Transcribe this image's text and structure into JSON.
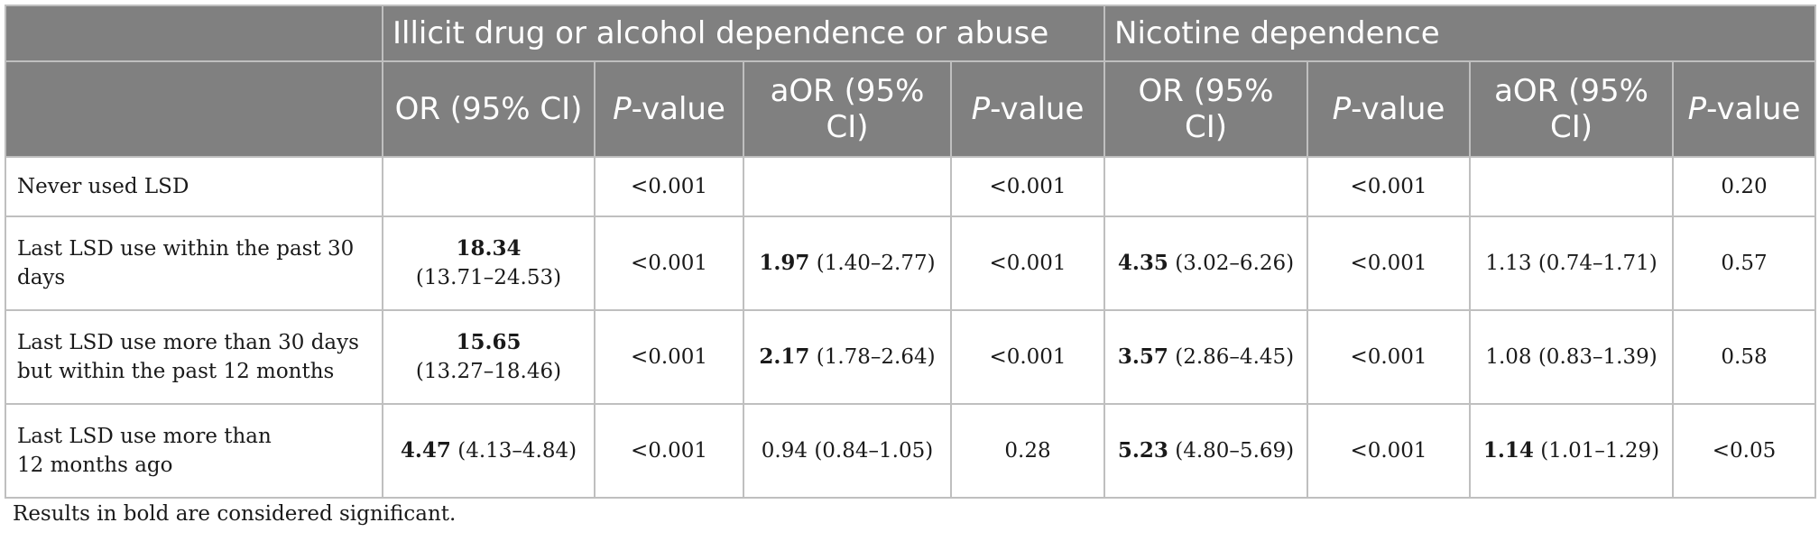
{
  "groups": {
    "illicit": "Illicit drug or alcohol dependence or abuse",
    "nicotine": "Nicotine dependence"
  },
  "columns": {
    "or": "OR (95% CI)",
    "p_italic": "P",
    "p_rest": "-value",
    "aor": "aOR (95% CI)"
  },
  "rows": [
    {
      "label": "Never used LSD",
      "c1_bold": "",
      "c1_rest": "",
      "c2": "<0.001",
      "c3_bold": "",
      "c3_rest": "",
      "c4": "<0.001",
      "c5_bold": "",
      "c5_rest": "",
      "c6": "<0.001",
      "c7_bold": "",
      "c7_rest": "",
      "c8": "0.20"
    },
    {
      "label": "Last LSD use within the past 30 days",
      "c1_bold": "18.34",
      "c1_rest": "(13.71–24.53)",
      "c2": "<0.001",
      "c3_bold": "1.97",
      "c3_rest": " (1.40–2.77)",
      "c4": "<0.001",
      "c5_bold": "4.35",
      "c5_rest": " (3.02–6.26)",
      "c6": "<0.001",
      "c7_bold": "",
      "c7_rest": "1.13 (0.74–1.71)",
      "c8": "0.57"
    },
    {
      "label": "Last LSD use more than 30 days but within the past 12 months",
      "c1_bold": "15.65",
      "c1_rest": "(13.27–18.46)",
      "c2": "<0.001",
      "c3_bold": "2.17",
      "c3_rest": " (1.78–2.64)",
      "c4": "<0.001",
      "c5_bold": "3.57",
      "c5_rest": " (2.86–4.45)",
      "c6": "<0.001",
      "c7_bold": "",
      "c7_rest": "1.08 (0.83–1.39)",
      "c8": "0.58"
    },
    {
      "label": "Last LSD use more than 12 months ago",
      "c1_bold": "4.47",
      "c1_rest": " (4.13–4.84)",
      "c2": "<0.001",
      "c3_bold": "",
      "c3_rest": "0.94 (0.84–1.05)",
      "c4": "0.28",
      "c5_bold": "5.23",
      "c5_rest": " (4.80–5.69)",
      "c6": "<0.001",
      "c7_bold": "1.14",
      "c7_rest": " (1.01–1.29)",
      "c8": "<0.05"
    }
  ],
  "footnote": "Results in bold are considered significant."
}
